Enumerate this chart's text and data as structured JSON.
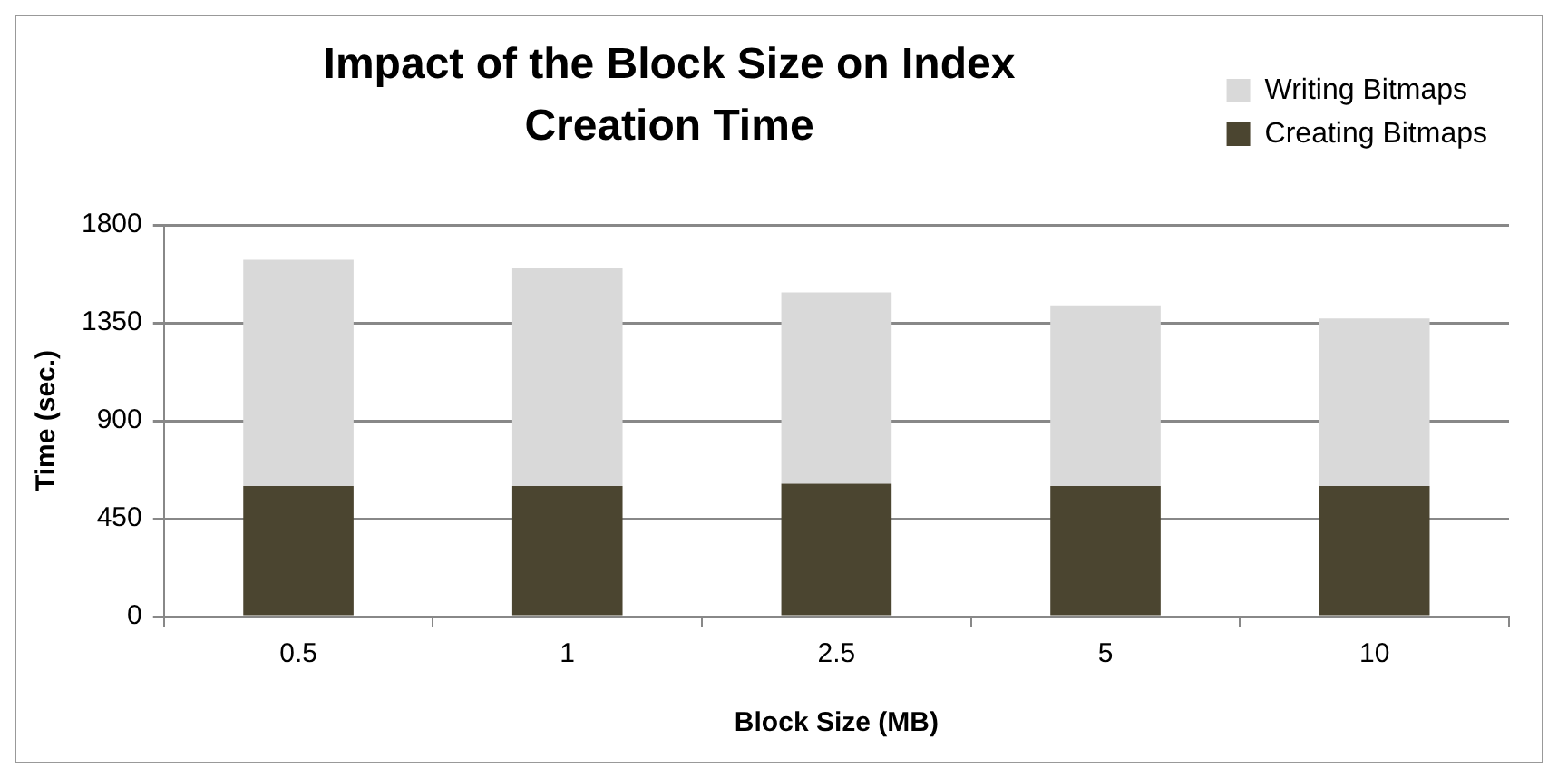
{
  "chart_data": {
    "type": "bar",
    "title": "Impact of the Block Size on Index Creation Time",
    "xlabel": "Block Size (MB)",
    "ylabel": "Time (sec.)",
    "categories": [
      "0.5",
      "1",
      "2.5",
      "5",
      "10"
    ],
    "series": [
      {
        "name": "Creating Bitmaps",
        "color": "#4b4530",
        "values": [
          600,
          600,
          610,
          600,
          600
        ]
      },
      {
        "name": "Writing Bitmaps",
        "color": "#d9d9d9",
        "values": [
          1040,
          1000,
          880,
          830,
          770
        ]
      }
    ],
    "stacked": true,
    "ylim": [
      0,
      1800
    ],
    "yticks": [
      0,
      450,
      900,
      1350,
      1800
    ],
    "grid": "y",
    "legend": "top right"
  }
}
